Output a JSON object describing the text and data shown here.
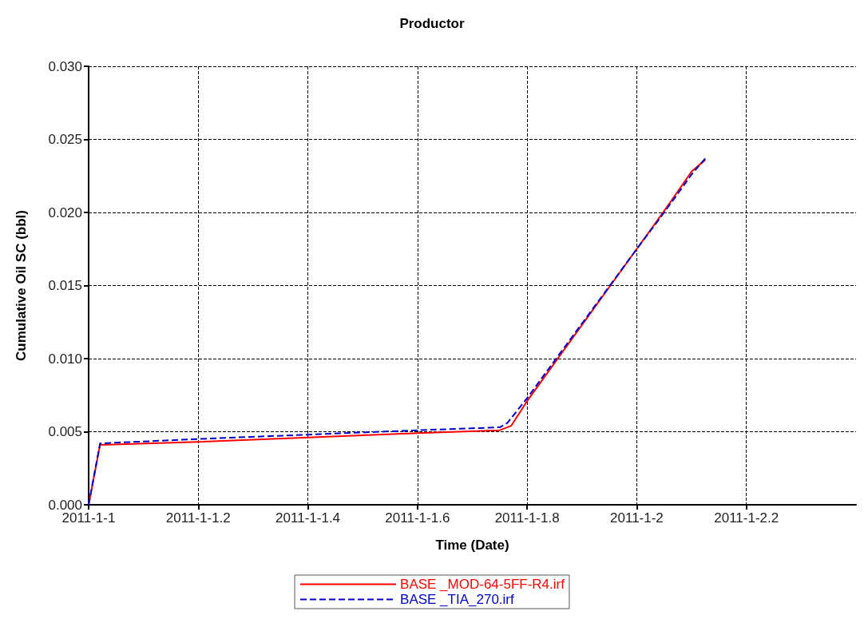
{
  "chart_data": {
    "type": "line",
    "title": "Productor",
    "xlabel": "Time (Date)",
    "ylabel": "Cumulative Oil SC (bbl)",
    "xlim": [
      "2011-01-01T00:00",
      "2011-01-02T09:36"
    ],
    "xticks": [
      {
        "value": "2011-01-01T00:00",
        "label": "2011-1-1"
      },
      {
        "value": "2011-01-01T04:48",
        "label": "2011-1-1.2"
      },
      {
        "value": "2011-01-01T09:36",
        "label": "2011-1-1.4"
      },
      {
        "value": "2011-01-01T14:24",
        "label": "2011-1-1.6"
      },
      {
        "value": "2011-01-01T19:12",
        "label": "2011-1-1.8"
      },
      {
        "value": "2011-01-02T00:00",
        "label": "2011-1-2"
      },
      {
        "value": "2011-01-02T04:48",
        "label": "2011-1-2.2"
      }
    ],
    "ylim": [
      0,
      0.03
    ],
    "yticks": [
      {
        "value": 0,
        "label": "0.000"
      },
      {
        "value": 0.005,
        "label": "0.005"
      },
      {
        "value": 0.01,
        "label": "0.010"
      },
      {
        "value": 0.015,
        "label": "0.015"
      },
      {
        "value": 0.02,
        "label": "0.020"
      },
      {
        "value": 0.025,
        "label": "0.025"
      },
      {
        "value": 0.03,
        "label": "0.030"
      }
    ],
    "grid": true,
    "legend": "bottom",
    "marker": "none",
    "series": [
      {
        "name": "BASE _MOD-64-5FF-R4.irf",
        "color": "#ff0000",
        "line_style": "solid",
        "x": [
          "2011-01-01T00:00",
          "2011-01-01T00:30",
          "2011-01-01T04:48",
          "2011-01-01T09:36",
          "2011-01-01T14:24",
          "2011-01-01T18:00",
          "2011-01-01T18:30",
          "2011-01-01T19:12",
          "2011-01-01T21:36",
          "2011-01-02T00:00",
          "2011-01-02T01:12",
          "2011-01-02T02:24",
          "2011-01-02T03:00"
        ],
        "values": [
          0,
          0.0041,
          0.0043,
          0.0046,
          0.0049,
          0.0051,
          0.0054,
          0.0071,
          0.0123,
          0.0175,
          0.0201,
          0.0228,
          0.0236
        ]
      },
      {
        "name": "BASE _TIA_270.irf",
        "color": "#0000cc",
        "line_style": "dashed",
        "x": [
          "2011-01-01T00:00",
          "2011-01-01T00:30",
          "2011-01-01T04:48",
          "2011-01-01T09:36",
          "2011-01-01T14:24",
          "2011-01-01T18:00",
          "2011-01-01T18:20",
          "2011-01-01T19:12",
          "2011-01-01T21:36",
          "2011-01-02T00:00",
          "2011-01-02T01:12",
          "2011-01-02T02:24",
          "2011-01-02T03:00"
        ],
        "values": [
          0,
          0.0042,
          0.0045,
          0.0048,
          0.0051,
          0.0053,
          0.0056,
          0.0073,
          0.0124,
          0.0175,
          0.02,
          0.0226,
          0.0237
        ]
      }
    ]
  }
}
